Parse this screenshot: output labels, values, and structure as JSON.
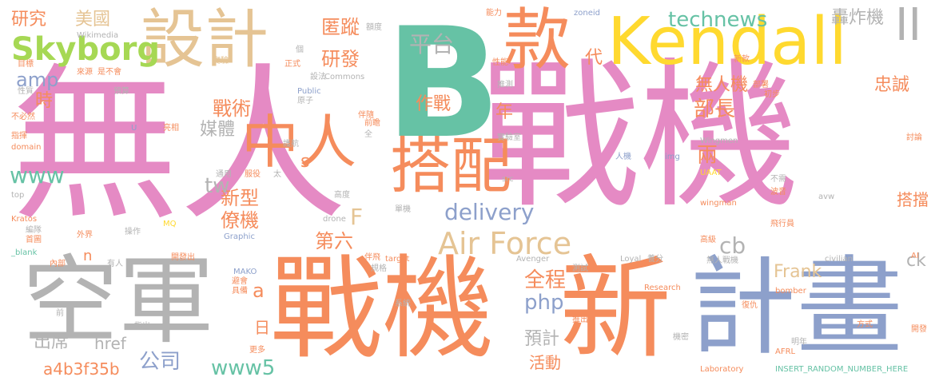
{
  "palette": {
    "pink": "#e58ac4",
    "orange": "#f58c5c",
    "green": "#66c2a5",
    "gray": "#b3b3b3",
    "blue": "#8da0cb",
    "yellow": "#ffd92f",
    "tan": "#e5c494",
    "lime": "#a6d854"
  },
  "words": [
    {
      "text": "無人",
      "color": "pink"
    },
    {
      "text": "戰機",
      "color": "pink"
    },
    {
      "text": "B",
      "color": "green"
    },
    {
      "text": "空軍",
      "color": "gray"
    },
    {
      "text": "戰機",
      "color": "orange"
    },
    {
      "text": "新",
      "color": "orange"
    },
    {
      "text": "計畫",
      "color": "blue"
    },
    {
      "text": "Kendall",
      "color": "yellow"
    },
    {
      "text": "設計",
      "color": "tan"
    },
    {
      "text": "款",
      "color": "orange"
    },
    {
      "text": "搭配",
      "color": "orange"
    },
    {
      "text": "中",
      "color": "orange"
    },
    {
      "text": "人",
      "color": "orange"
    },
    {
      "text": "Air Force",
      "color": "tan"
    },
    {
      "text": "Skyborg",
      "color": "lime"
    },
    {
      "text": "研究",
      "color": "orange"
    },
    {
      "text": "美國",
      "color": "tan"
    },
    {
      "text": "technews",
      "color": "green"
    },
    {
      "text": "平台",
      "color": "gray"
    },
    {
      "text": "匿蹤",
      "color": "orange"
    },
    {
      "text": "研發",
      "color": "orange"
    },
    {
      "text": "轟炸機",
      "color": "gray"
    },
    {
      "text": "delivery",
      "color": "blue"
    },
    {
      "text": "作戰",
      "color": "orange"
    },
    {
      "text": "戰術",
      "color": "orange"
    },
    {
      "text": "www",
      "color": "green"
    },
    {
      "text": "amp",
      "color": "blue"
    },
    {
      "text": "時",
      "color": "orange"
    },
    {
      "text": "媒體",
      "color": "gray"
    },
    {
      "text": "無人機",
      "color": "orange"
    },
    {
      "text": "部長",
      "color": "orange"
    },
    {
      "text": "忠誠",
      "color": "orange"
    },
    {
      "text": "年",
      "color": "orange"
    },
    {
      "text": "兩",
      "color": "orange"
    },
    {
      "text": "新型",
      "color": "orange"
    },
    {
      "text": "僚機",
      "color": "orange"
    },
    {
      "text": "tw",
      "color": "gray"
    },
    {
      "text": "第六",
      "color": "orange"
    },
    {
      "text": "全程",
      "color": "orange"
    },
    {
      "text": "php",
      "color": "blue"
    },
    {
      "text": "cb",
      "color": "gray"
    },
    {
      "text": "搭擋",
      "color": "orange"
    },
    {
      "text": "Frank",
      "color": "tan"
    },
    {
      "text": "ck",
      "color": "gray"
    },
    {
      "text": "預計",
      "color": "gray"
    },
    {
      "text": "活動",
      "color": "orange"
    },
    {
      "text": "www5",
      "color": "green"
    },
    {
      "text": "公司",
      "color": "blue"
    },
    {
      "text": "a4b3f35b",
      "color": "orange"
    },
    {
      "text": "出席",
      "color": "gray"
    },
    {
      "text": "href",
      "color": "gray"
    },
    {
      "text": "a",
      "color": "orange"
    },
    {
      "text": "日",
      "color": "orange"
    },
    {
      "text": "F",
      "color": "tan"
    },
    {
      "text": "n",
      "color": "orange"
    },
    {
      "text": "s",
      "color": "orange"
    },
    {
      "text": "代",
      "color": "orange"
    },
    {
      "text": "II",
      "color": "gray"
    },
    {
      "text": "能力",
      "color": "orange"
    },
    {
      "text": "zoneid",
      "color": "blue"
    },
    {
      "text": "Wikimedia",
      "color": "gray"
    },
    {
      "text": "Commons",
      "color": "gray"
    },
    {
      "text": "性能",
      "color": "orange"
    },
    {
      "text": "新款",
      "color": "orange"
    },
    {
      "text": "推測",
      "color": "gray"
    },
    {
      "text": "部署",
      "color": "orange"
    },
    {
      "text": "初步",
      "color": "orange"
    },
    {
      "text": "實驗",
      "color": "tan"
    },
    {
      "text": "正式",
      "color": "orange"
    },
    {
      "text": "額度",
      "color": "gray"
    },
    {
      "text": "個",
      "color": "gray"
    },
    {
      "text": "目標",
      "color": "orange"
    },
    {
      "text": "來源",
      "color": "orange"
    },
    {
      "text": "是不會",
      "color": "orange"
    },
    {
      "text": "性質",
      "color": "gray"
    },
    {
      "text": "預算",
      "color": "gray"
    },
    {
      "text": "設法",
      "color": "gray"
    },
    {
      "text": "Public",
      "color": "blue"
    },
    {
      "text": "原子",
      "color": "gray"
    },
    {
      "text": "伴隨",
      "color": "orange"
    },
    {
      "text": "前瞻",
      "color": "orange"
    },
    {
      "text": "實驗室",
      "color": "gray"
    },
    {
      "text": "人機",
      "color": "blue"
    },
    {
      "text": "Wingmen",
      "color": "gray"
    },
    {
      "text": "不必然",
      "color": "orange"
    },
    {
      "text": "指揮",
      "color": "orange"
    },
    {
      "text": "domain",
      "color": "orange"
    },
    {
      "text": "亮相",
      "color": "orange"
    },
    {
      "text": "全",
      "color": "gray"
    },
    {
      "text": "護航",
      "color": "gray"
    },
    {
      "text": "img",
      "color": "blue"
    },
    {
      "text": "討論",
      "color": "orange"
    },
    {
      "text": "UAAT",
      "color": "yellow"
    },
    {
      "text": "top",
      "color": "gray"
    },
    {
      "text": "通用",
      "color": "gray"
    },
    {
      "text": "服役",
      "color": "orange"
    },
    {
      "text": "太",
      "color": "gray"
    },
    {
      "text": "src",
      "color": "gray"
    },
    {
      "text": "不需",
      "color": "gray"
    },
    {
      "text": "波音",
      "color": "orange"
    },
    {
      "text": "avw",
      "color": "gray"
    },
    {
      "text": "Kratos",
      "color": "orange"
    },
    {
      "text": "高度",
      "color": "gray"
    },
    {
      "text": "wingman",
      "color": "orange"
    },
    {
      "text": "MQ",
      "color": "yellow"
    },
    {
      "text": "drone",
      "color": "gray"
    },
    {
      "text": "單機",
      "color": "gray"
    },
    {
      "text": "飛行員",
      "color": "orange"
    },
    {
      "text": "首圖",
      "color": "orange"
    },
    {
      "text": "操作",
      "color": "gray"
    },
    {
      "text": "外界",
      "color": "orange"
    },
    {
      "text": "Graphic",
      "color": "blue"
    },
    {
      "text": "高級",
      "color": "orange"
    },
    {
      "text": "編隊",
      "color": "gray"
    },
    {
      "text": "_blank",
      "color": "green"
    },
    {
      "text": "開發出",
      "color": "orange"
    },
    {
      "text": "Avenger",
      "color": "gray"
    },
    {
      "text": "Loyal",
      "color": "gray"
    },
    {
      "text": "civilian",
      "color": "gray"
    },
    {
      "text": "AI",
      "color": "orange"
    },
    {
      "text": "內部",
      "color": "orange"
    },
    {
      "text": "有人",
      "color": "gray"
    },
    {
      "text": "伴飛",
      "color": "orange"
    },
    {
      "text": "target",
      "color": "orange"
    },
    {
      "text": "測試",
      "color": "gray"
    },
    {
      "text": "養分",
      "color": "gray"
    },
    {
      "text": "無人戰機",
      "color": "gray"
    },
    {
      "text": "MAKO",
      "color": "blue"
    },
    {
      "text": "規格",
      "color": "gray"
    },
    {
      "text": "避會",
      "color": "orange"
    },
    {
      "text": "具備",
      "color": "orange"
    },
    {
      "text": "推出",
      "color": "orange"
    },
    {
      "text": "Research",
      "color": "orange"
    },
    {
      "text": "bomber",
      "color": "orange"
    },
    {
      "text": "前",
      "color": "gray"
    },
    {
      "text": "系統",
      "color": "gray"
    },
    {
      "text": "復仇",
      "color": "orange"
    },
    {
      "text": "方式",
      "color": "orange"
    },
    {
      "text": "開發",
      "color": "orange"
    },
    {
      "text": "指出",
      "color": "gray"
    },
    {
      "text": "機密",
      "color": "gray"
    },
    {
      "text": "更多",
      "color": "orange"
    },
    {
      "text": "明年",
      "color": "gray"
    },
    {
      "text": "AFRL",
      "color": "orange"
    },
    {
      "text": "Laboratory",
      "color": "orange"
    },
    {
      "text": "INSERT_RANDOM_NUMBER_HERE",
      "color": "green"
    },
    {
      "text": "U",
      "color": "blue"
    }
  ]
}
